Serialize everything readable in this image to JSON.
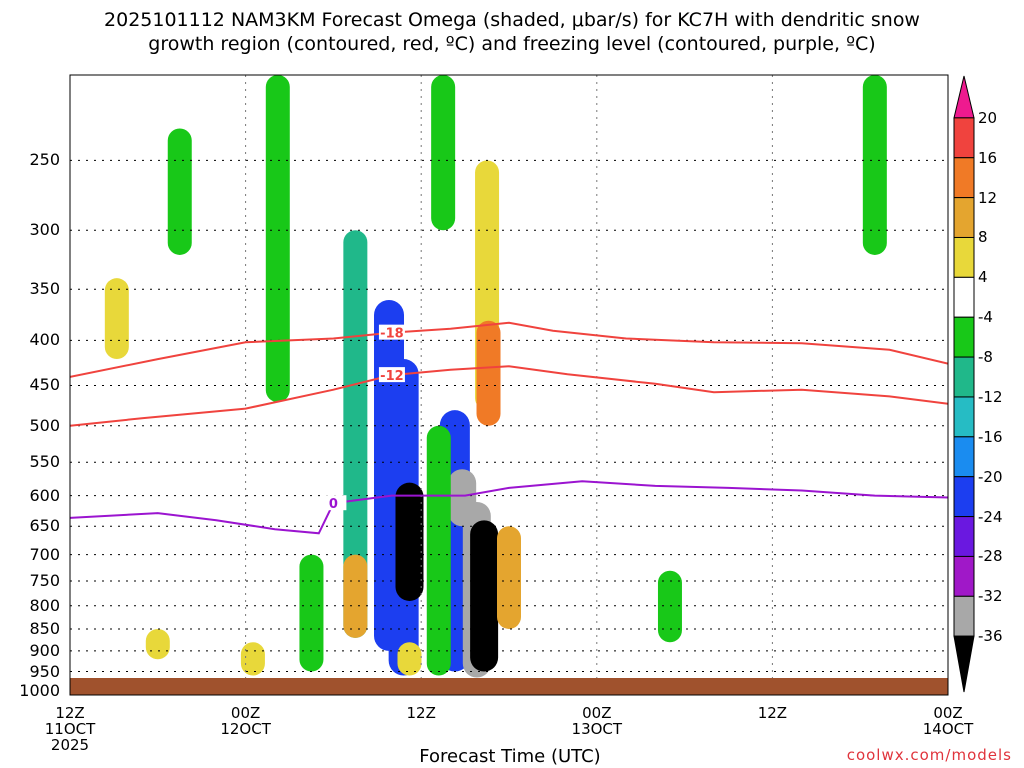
{
  "title_line1": "2025101112 NAM3KM Forecast Omega (shaded, μbar/s) for KC7H with dendritic snow",
  "title_line2": "growth region (contoured, red, ºC) and freezing level (contoured, purple, ºC)",
  "credit": "coolwx.com/models",
  "colors": {
    "terrain": "#a0522d",
    "dgz_contour": "#f0433e",
    "freezing_contour": "#9b14d0"
  },
  "chart_data": {
    "type": "heatmap",
    "title": "2025101112 NAM3KM Forecast Omega (shaded, μbar/s) for KC7H with dendritic snow growth region (contoured, red, ºC) and freezing level (contoured, purple, ºC)",
    "xlabel": "Forecast Time (UTC)",
    "ylabel": "",
    "x_ticks": [
      {
        "line1": "12Z",
        "line2": "11OCT",
        "line3": "2025",
        "hour": 0
      },
      {
        "line1": "00Z",
        "line2": "12OCT",
        "line3": "",
        "hour": 12
      },
      {
        "line1": "12Z",
        "line2": "",
        "line3": "",
        "hour": 24
      },
      {
        "line1": "00Z",
        "line2": "13OCT",
        "line3": "",
        "hour": 36
      },
      {
        "line1": "12Z",
        "line2": "",
        "line3": "",
        "hour": 48
      },
      {
        "line1": "00Z",
        "line2": "14OCT",
        "line3": "",
        "hour": 60
      }
    ],
    "xlim_hours": [
      0,
      60
    ],
    "y_ticks_hpa": [
      250,
      300,
      350,
      400,
      450,
      500,
      550,
      600,
      650,
      700,
      750,
      800,
      850,
      900,
      950,
      1000
    ],
    "ylim_hpa": [
      1010,
      200
    ],
    "y_scale": "log-pressure",
    "grid": true,
    "colorbar": {
      "labels": [
        "20",
        "16",
        "12",
        "8",
        "4",
        "-4",
        "-8",
        "-12",
        "-16",
        "-20",
        "-24",
        "-28",
        "-32",
        "-36"
      ],
      "bins": [
        {
          "min": 20,
          "max": 24,
          "color": "#ee1a8f"
        },
        {
          "min": 16,
          "max": 20,
          "color": "#f0433e"
        },
        {
          "min": 12,
          "max": 16,
          "color": "#f07a26"
        },
        {
          "min": 8,
          "max": 12,
          "color": "#e4a52f"
        },
        {
          "min": 4,
          "max": 8,
          "color": "#e8d83a"
        },
        {
          "min": -4,
          "max": 4,
          "color": "#ffffff"
        },
        {
          "min": -8,
          "max": -4,
          "color": "#18c818"
        },
        {
          "min": -12,
          "max": -8,
          "color": "#20b88a"
        },
        {
          "min": -16,
          "max": -12,
          "color": "#26bcc4"
        },
        {
          "min": -20,
          "max": -16,
          "color": "#1a8cf0"
        },
        {
          "min": -24,
          "max": -20,
          "color": "#1c3ef0"
        },
        {
          "min": -28,
          "max": -24,
          "color": "#6a18e0"
        },
        {
          "min": -32,
          "max": -28,
          "color": "#a018c8"
        },
        {
          "min": -36,
          "max": -32,
          "color": "#a8a8a8"
        },
        {
          "min": -40,
          "max": -36,
          "color": "#000000"
        }
      ]
    },
    "omega_features": [
      {
        "hour": 14.2,
        "p_top": 200,
        "p_bot": 470,
        "omega": -6
      },
      {
        "hour": 25.5,
        "p_top": 200,
        "p_bot": 300,
        "omega": -6
      },
      {
        "hour": 55.0,
        "p_top": 200,
        "p_bot": 320,
        "omega": -6
      },
      {
        "hour": 7.5,
        "p_top": 230,
        "p_bot": 320,
        "omega": -6
      },
      {
        "hour": 19.5,
        "p_top": 300,
        "p_bot": 870,
        "omega": -10
      },
      {
        "hour": 21.8,
        "p_top": 360,
        "p_bot": 900,
        "omega": -22
      },
      {
        "hour": 22.8,
        "p_top": 420,
        "p_bot": 960,
        "omega": -24
      },
      {
        "hour": 23.2,
        "p_top": 580,
        "p_bot": 790,
        "omega": -38
      },
      {
        "hour": 26.3,
        "p_top": 480,
        "p_bot": 950,
        "omega": -22
      },
      {
        "hour": 26.8,
        "p_top": 560,
        "p_bot": 650,
        "omega": -36
      },
      {
        "hour": 27.8,
        "p_top": 610,
        "p_bot": 965,
        "omega": -34
      },
      {
        "hour": 28.3,
        "p_top": 640,
        "p_bot": 950,
        "omega": -38
      },
      {
        "hour": 25.2,
        "p_top": 500,
        "p_bot": 960,
        "omega": -7
      },
      {
        "hour": 19.5,
        "p_top": 700,
        "p_bot": 870,
        "omega": 10
      },
      {
        "hour": 28.5,
        "p_top": 250,
        "p_bot": 480,
        "omega": 6
      },
      {
        "hour": 28.6,
        "p_top": 380,
        "p_bot": 500,
        "omega": 12
      },
      {
        "hour": 30.0,
        "p_top": 650,
        "p_bot": 850,
        "omega": 10
      },
      {
        "hour": 23.2,
        "p_top": 880,
        "p_bot": 960,
        "omega": 6
      },
      {
        "hour": 16.5,
        "p_top": 700,
        "p_bot": 950,
        "omega": -6
      },
      {
        "hour": 41.0,
        "p_top": 730,
        "p_bot": 880,
        "omega": -6
      },
      {
        "hour": 12.5,
        "p_top": 880,
        "p_bot": 960,
        "omega": 5
      },
      {
        "hour": 6.0,
        "p_top": 850,
        "p_bot": 920,
        "omega": 5
      },
      {
        "hour": 3.2,
        "p_top": 340,
        "p_bot": 420,
        "omega": 5
      }
    ],
    "dgz_contours": [
      {
        "label": "-18",
        "points": [
          [
            0,
            440
          ],
          [
            6,
            420
          ],
          [
            12,
            402
          ],
          [
            18,
            398
          ],
          [
            22,
            392
          ],
          [
            26,
            388
          ],
          [
            30,
            382
          ],
          [
            33,
            390
          ],
          [
            38,
            398
          ],
          [
            44,
            402
          ],
          [
            50,
            403
          ],
          [
            56,
            410
          ],
          [
            60,
            425
          ]
        ]
      },
      {
        "label": "-12",
        "points": [
          [
            0,
            500
          ],
          [
            5,
            490
          ],
          [
            12,
            478
          ],
          [
            18,
            455
          ],
          [
            22,
            438
          ],
          [
            26,
            432
          ],
          [
            30,
            428
          ],
          [
            34,
            437
          ],
          [
            40,
            448
          ],
          [
            44,
            458
          ],
          [
            50,
            455
          ],
          [
            56,
            463
          ],
          [
            60,
            472
          ]
        ]
      }
    ],
    "freezing_contour": {
      "label": "0",
      "points": [
        [
          0,
          636
        ],
        [
          6,
          628
        ],
        [
          10,
          640
        ],
        [
          14,
          655
        ],
        [
          17,
          662
        ],
        [
          18,
          612
        ],
        [
          22,
          600
        ],
        [
          27,
          600
        ],
        [
          30,
          588
        ],
        [
          35,
          578
        ],
        [
          40,
          585
        ],
        [
          45,
          588
        ],
        [
          50,
          592
        ],
        [
          55,
          600
        ],
        [
          60,
          603
        ]
      ]
    }
  }
}
